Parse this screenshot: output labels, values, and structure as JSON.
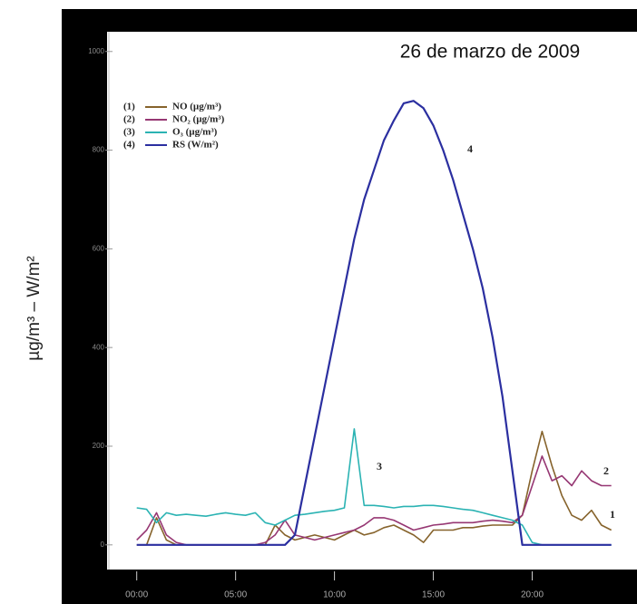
{
  "chart_data": {
    "type": "line",
    "title": "26 de marzo de 2009",
    "y_label": "µg/m³ – W/m²",
    "x": [
      0,
      0.5,
      1,
      1.5,
      2,
      2.5,
      3,
      3.5,
      4,
      4.5,
      5,
      5.5,
      6,
      6.5,
      7,
      7.5,
      8,
      8.5,
      9,
      9.5,
      10,
      10.5,
      11,
      11.5,
      12,
      12.5,
      13,
      13.5,
      14,
      14.5,
      15,
      15.5,
      16,
      16.5,
      17,
      17.5,
      18,
      18.5,
      19,
      19.5,
      20,
      20.5,
      21,
      21.5,
      22,
      22.5,
      23,
      23.5,
      24
    ],
    "xlim": [
      -1.5,
      25.3
    ],
    "xticks": [
      {
        "value": 0,
        "label": "00:00"
      },
      {
        "value": 5,
        "label": "05:00"
      },
      {
        "value": 10,
        "label": "10:00"
      },
      {
        "value": 15,
        "label": "15:00"
      },
      {
        "value": 20,
        "label": "20:00"
      }
    ],
    "ylim": [
      -50,
      1040
    ],
    "yticks": [
      0,
      200,
      400,
      600,
      800,
      1000
    ],
    "series": [
      {
        "name": "NO (µg/m³)",
        "legend_index": "(1)",
        "curve_label": "1",
        "color": "#86632c",
        "values": [
          0,
          0,
          55,
          10,
          0,
          0,
          0,
          0,
          0,
          0,
          0,
          0,
          0,
          0,
          40,
          20,
          10,
          15,
          20,
          15,
          10,
          20,
          30,
          20,
          25,
          35,
          40,
          30,
          20,
          5,
          30,
          30,
          30,
          35,
          35,
          38,
          40,
          40,
          40,
          60,
          150,
          230,
          160,
          100,
          60,
          50,
          70,
          40,
          30
        ]
      },
      {
        "name": "NO₂ (µg/m³)",
        "legend_index": "(2)",
        "curve_label": "2",
        "color": "#963773",
        "values": [
          10,
          30,
          65,
          20,
          5,
          0,
          0,
          0,
          0,
          0,
          0,
          0,
          0,
          5,
          20,
          50,
          20,
          15,
          10,
          15,
          20,
          25,
          30,
          40,
          55,
          55,
          50,
          40,
          30,
          35,
          40,
          42,
          45,
          45,
          45,
          48,
          50,
          48,
          45,
          60,
          120,
          180,
          130,
          140,
          120,
          150,
          130,
          120,
          120
        ]
      },
      {
        "name": "O₃ (µg/m³)",
        "legend_index": "(3)",
        "curve_label": "3",
        "color": "#2bb3b3",
        "values": [
          75,
          72,
          45,
          65,
          60,
          62,
          60,
          58,
          62,
          65,
          62,
          60,
          65,
          45,
          40,
          50,
          60,
          62,
          65,
          68,
          70,
          75,
          235,
          80,
          80,
          78,
          75,
          78,
          78,
          80,
          80,
          78,
          75,
          72,
          70,
          65,
          60,
          55,
          50,
          40,
          5,
          0,
          0,
          0,
          0,
          0,
          0,
          0,
          0
        ]
      },
      {
        "name": "RS (W/m²)",
        "legend_index": "(4)",
        "curve_label": "4",
        "color": "#2b2fa0",
        "values": [
          0,
          0,
          0,
          0,
          0,
          0,
          0,
          0,
          0,
          0,
          0,
          0,
          0,
          0,
          0,
          0,
          20,
          120,
          220,
          320,
          420,
          520,
          620,
          700,
          760,
          820,
          860,
          895,
          900,
          885,
          850,
          800,
          740,
          670,
          600,
          520,
          420,
          300,
          150,
          0,
          0,
          0,
          0,
          0,
          0,
          0,
          0,
          0,
          0
        ]
      }
    ]
  }
}
